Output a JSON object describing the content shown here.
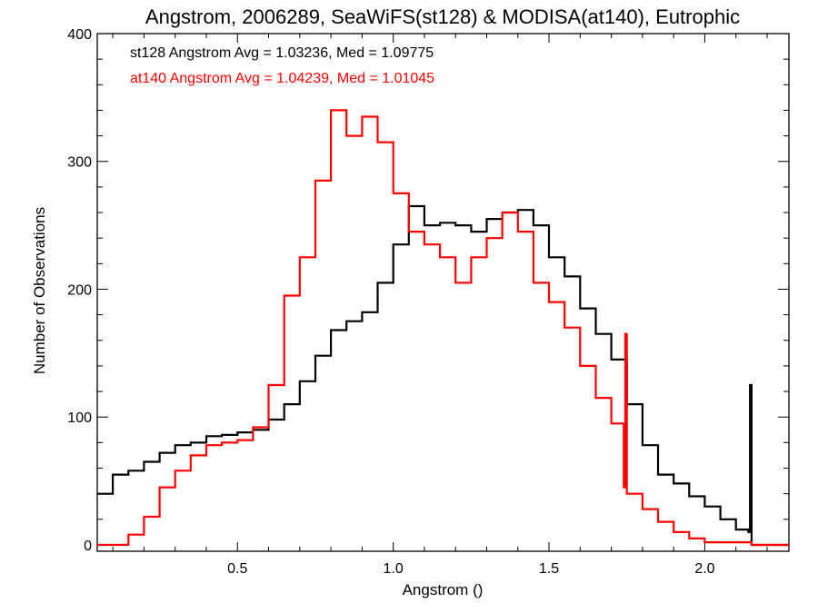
{
  "chart_data": {
    "type": "line",
    "title": "Angstrom, 2006289, SeaWiFS(st128) & MODISA(at140), Eutrophic",
    "xlabel": "Angstrom ()",
    "ylabel": "Number of Observations",
    "xlim": [
      0.05,
      2.27
    ],
    "ylim": [
      -5,
      400
    ],
    "xticks": [
      0.5,
      1.0,
      1.5,
      2.0
    ],
    "xtick_labels": [
      "0.5",
      "1.0",
      "1.5",
      "2.0"
    ],
    "yticks": [
      0,
      100,
      200,
      300,
      400
    ],
    "ytick_labels": [
      "0",
      "100",
      "200",
      "300",
      "400"
    ],
    "grid": false,
    "legend_placement": "top-left",
    "annotations": [
      {
        "text": "st128 Angstrom Avg = 1.03236, Med = 1.09775",
        "color": "#000000"
      },
      {
        "text": "at140 Angstrom Avg = 1.04239, Med = 1.01045",
        "color": "#ff0000"
      }
    ],
    "series": [
      {
        "color": "#000000",
        "step": "histogram",
        "points": [
          [
            0.05,
            40
          ],
          [
            0.1,
            55
          ],
          [
            0.15,
            58
          ],
          [
            0.2,
            65
          ],
          [
            0.25,
            72
          ],
          [
            0.3,
            78
          ],
          [
            0.35,
            80
          ],
          [
            0.4,
            85
          ],
          [
            0.45,
            86
          ],
          [
            0.5,
            88
          ],
          [
            0.55,
            90
          ],
          [
            0.6,
            98
          ],
          [
            0.65,
            110
          ],
          [
            0.7,
            128
          ],
          [
            0.75,
            148
          ],
          [
            0.8,
            168
          ],
          [
            0.85,
            175
          ],
          [
            0.9,
            182
          ],
          [
            0.95,
            205
          ],
          [
            1.0,
            235
          ],
          [
            1.05,
            265
          ],
          [
            1.1,
            250
          ],
          [
            1.15,
            252
          ],
          [
            1.2,
            250
          ],
          [
            1.25,
            245
          ],
          [
            1.3,
            255
          ],
          [
            1.35,
            260
          ],
          [
            1.4,
            262
          ],
          [
            1.45,
            250
          ],
          [
            1.5,
            225
          ],
          [
            1.55,
            210
          ],
          [
            1.6,
            185
          ],
          [
            1.65,
            165
          ],
          [
            1.7,
            145
          ],
          [
            1.75,
            110
          ],
          [
            1.8,
            78
          ],
          [
            1.85,
            55
          ],
          [
            1.9,
            48
          ],
          [
            1.95,
            38
          ],
          [
            2.0,
            30
          ],
          [
            2.05,
            20
          ],
          [
            2.1,
            12
          ],
          [
            2.14,
            10
          ],
          [
            2.145,
            125
          ],
          [
            2.15,
            0
          ],
          [
            2.27,
            0
          ]
        ]
      },
      {
        "color": "#ff0000",
        "step": "histogram",
        "points": [
          [
            0.05,
            0
          ],
          [
            0.1,
            0
          ],
          [
            0.15,
            8
          ],
          [
            0.2,
            22
          ],
          [
            0.25,
            45
          ],
          [
            0.3,
            58
          ],
          [
            0.35,
            70
          ],
          [
            0.4,
            78
          ],
          [
            0.45,
            80
          ],
          [
            0.5,
            82
          ],
          [
            0.55,
            92
          ],
          [
            0.6,
            125
          ],
          [
            0.65,
            195
          ],
          [
            0.7,
            225
          ],
          [
            0.75,
            285
          ],
          [
            0.8,
            340
          ],
          [
            0.85,
            320
          ],
          [
            0.9,
            335
          ],
          [
            0.95,
            315
          ],
          [
            1.0,
            275
          ],
          [
            1.05,
            245
          ],
          [
            1.1,
            235
          ],
          [
            1.15,
            225
          ],
          [
            1.2,
            205
          ],
          [
            1.25,
            225
          ],
          [
            1.3,
            240
          ],
          [
            1.35,
            260
          ],
          [
            1.4,
            245
          ],
          [
            1.45,
            205
          ],
          [
            1.5,
            190
          ],
          [
            1.55,
            170
          ],
          [
            1.6,
            140
          ],
          [
            1.65,
            115
          ],
          [
            1.7,
            95
          ],
          [
            1.74,
            45
          ],
          [
            1.745,
            165
          ],
          [
            1.75,
            40
          ],
          [
            1.8,
            28
          ],
          [
            1.85,
            18
          ],
          [
            1.9,
            10
          ],
          [
            1.95,
            5
          ],
          [
            2.0,
            2
          ],
          [
            2.1,
            2
          ],
          [
            2.15,
            0
          ],
          [
            2.27,
            0
          ]
        ]
      }
    ]
  }
}
